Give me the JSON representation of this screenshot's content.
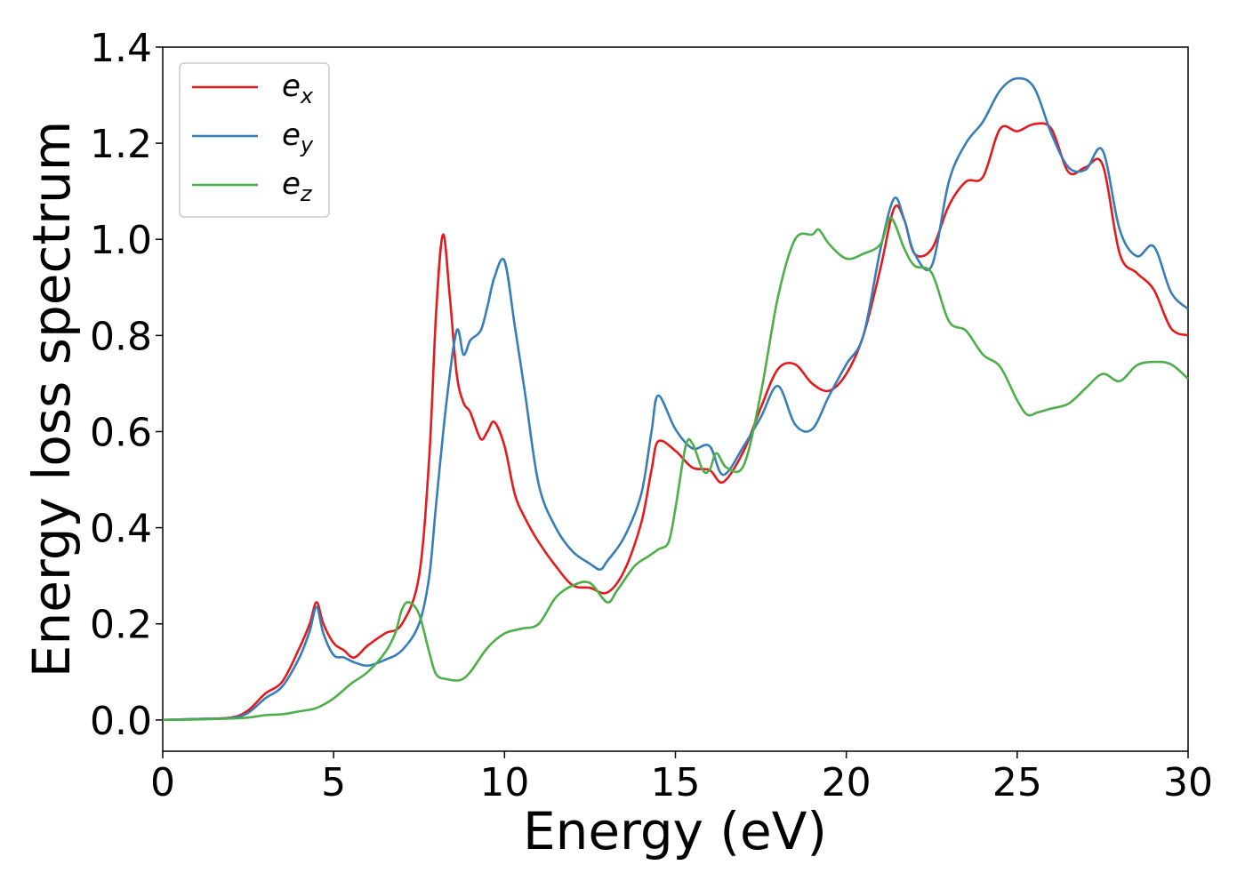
{
  "chart_data": {
    "type": "line",
    "title": "",
    "xlabel": "Energy (eV)",
    "ylabel": "Energy loss spectrum",
    "xlim": [
      0,
      30
    ],
    "ylim": [
      -0.065,
      1.4
    ],
    "xticks": [
      0,
      5,
      10,
      15,
      20,
      25,
      30
    ],
    "xtick_labels": [
      "0",
      "5",
      "10",
      "15",
      "20",
      "25",
      "30"
    ],
    "yticks": [
      0.0,
      0.2,
      0.4,
      0.6,
      0.8,
      1.0,
      1.2,
      1.4
    ],
    "ytick_labels": [
      "0.0",
      "0.2",
      "0.4",
      "0.6",
      "0.8",
      "1.0",
      "1.2",
      "1.4"
    ],
    "grid": false,
    "legend_position": "top-left",
    "series": [
      {
        "name": "e",
        "subscript": "x",
        "color": "#e41a1c",
        "x": [
          0,
          1,
          2,
          2.5,
          3,
          3.5,
          4,
          4.3,
          4.5,
          4.7,
          5,
          5.3,
          5.6,
          6,
          6.5,
          7,
          7.5,
          7.8,
          8,
          8.2,
          8.4,
          8.6,
          8.8,
          9,
          9.3,
          9.5,
          9.7,
          10,
          10.3,
          10.6,
          11,
          11.5,
          12,
          12.5,
          13,
          13.5,
          14,
          14.3,
          14.5,
          15,
          15.5,
          16,
          16.4,
          17,
          17.5,
          18,
          18.5,
          19,
          19.5,
          20,
          20.5,
          21,
          21.4,
          21.7,
          22,
          22.5,
          23,
          23.5,
          24,
          24.5,
          25,
          25.5,
          26,
          26.5,
          27,
          27.5,
          28,
          28.5,
          29,
          29.5,
          30
        ],
        "values": [
          0,
          0.002,
          0.005,
          0.02,
          0.055,
          0.08,
          0.15,
          0.2,
          0.245,
          0.2,
          0.16,
          0.145,
          0.13,
          0.155,
          0.18,
          0.2,
          0.3,
          0.55,
          0.85,
          1.01,
          0.88,
          0.72,
          0.66,
          0.64,
          0.585,
          0.6,
          0.62,
          0.57,
          0.47,
          0.42,
          0.37,
          0.32,
          0.28,
          0.275,
          0.265,
          0.31,
          0.41,
          0.52,
          0.58,
          0.56,
          0.525,
          0.52,
          0.495,
          0.56,
          0.65,
          0.73,
          0.74,
          0.7,
          0.685,
          0.72,
          0.8,
          0.94,
          1.065,
          1.04,
          0.97,
          0.98,
          1.07,
          1.12,
          1.13,
          1.23,
          1.225,
          1.24,
          1.23,
          1.14,
          1.15,
          1.155,
          0.97,
          0.93,
          0.895,
          0.815,
          0.8
        ]
      },
      {
        "name": "e",
        "subscript": "y",
        "color": "#377eb8",
        "x": [
          0,
          1,
          2,
          2.5,
          3,
          3.5,
          4,
          4.3,
          4.5,
          4.7,
          5,
          5.3,
          5.6,
          6,
          6.5,
          7,
          7.5,
          7.8,
          8,
          8.3,
          8.6,
          8.8,
          9,
          9.3,
          9.5,
          9.7,
          10,
          10.3,
          10.6,
          11,
          11.5,
          12,
          12.5,
          12.8,
          13,
          13.5,
          14,
          14.3,
          14.5,
          15,
          15.5,
          16,
          16.4,
          17,
          17.5,
          18,
          18.5,
          19,
          19.5,
          20,
          20.5,
          21,
          21.4,
          21.7,
          22,
          22.5,
          23,
          23.5,
          24,
          24.5,
          25,
          25.5,
          26,
          26.5,
          27,
          27.5,
          28,
          28.5,
          29,
          29.5,
          30
        ],
        "values": [
          0,
          0.002,
          0.004,
          0.015,
          0.045,
          0.07,
          0.13,
          0.185,
          0.235,
          0.18,
          0.135,
          0.13,
          0.12,
          0.113,
          0.125,
          0.145,
          0.2,
          0.3,
          0.45,
          0.66,
          0.81,
          0.76,
          0.79,
          0.81,
          0.86,
          0.92,
          0.955,
          0.82,
          0.68,
          0.49,
          0.4,
          0.35,
          0.325,
          0.313,
          0.33,
          0.38,
          0.47,
          0.6,
          0.675,
          0.605,
          0.565,
          0.57,
          0.51,
          0.57,
          0.63,
          0.695,
          0.615,
          0.605,
          0.675,
          0.74,
          0.8,
          0.98,
          1.085,
          1.04,
          0.97,
          0.945,
          1.12,
          1.2,
          1.245,
          1.31,
          1.335,
          1.315,
          1.22,
          1.15,
          1.145,
          1.185,
          1.02,
          0.965,
          0.985,
          0.89,
          0.855
        ]
      },
      {
        "name": "e",
        "subscript": "z",
        "color": "#4daf4a",
        "x": [
          0,
          1,
          2,
          2.5,
          3,
          3.5,
          4,
          4.5,
          5,
          5.5,
          6,
          6.5,
          6.8,
          7,
          7.2,
          7.5,
          7.8,
          8,
          8.3,
          8.7,
          9,
          9.5,
          10,
          10.5,
          11,
          11.5,
          12,
          12.5,
          13,
          13.3,
          13.8,
          14.2,
          14.5,
          14.8,
          15,
          15.3,
          15.5,
          15.8,
          16,
          16.2,
          16.5,
          17,
          17.5,
          18,
          18.5,
          19,
          19.2,
          19.5,
          20,
          20.5,
          21,
          21.3,
          21.7,
          22,
          22.5,
          23,
          23.5,
          24,
          24.5,
          25,
          25.3,
          25.6,
          26,
          26.5,
          27,
          27.5,
          28,
          28.5,
          29,
          29.5,
          30
        ],
        "values": [
          0,
          0.001,
          0.003,
          0.005,
          0.01,
          0.012,
          0.018,
          0.025,
          0.045,
          0.075,
          0.1,
          0.14,
          0.18,
          0.23,
          0.245,
          0.22,
          0.14,
          0.095,
          0.085,
          0.083,
          0.1,
          0.15,
          0.18,
          0.19,
          0.2,
          0.255,
          0.28,
          0.285,
          0.245,
          0.27,
          0.32,
          0.34,
          0.355,
          0.37,
          0.44,
          0.57,
          0.575,
          0.52,
          0.52,
          0.555,
          0.525,
          0.53,
          0.68,
          0.88,
          1.0,
          1.01,
          1.02,
          0.99,
          0.96,
          0.97,
          0.99,
          1.045,
          0.98,
          0.945,
          0.93,
          0.83,
          0.81,
          0.76,
          0.735,
          0.665,
          0.635,
          0.64,
          0.648,
          0.658,
          0.69,
          0.72,
          0.705,
          0.738,
          0.745,
          0.74,
          0.71
        ]
      }
    ]
  }
}
